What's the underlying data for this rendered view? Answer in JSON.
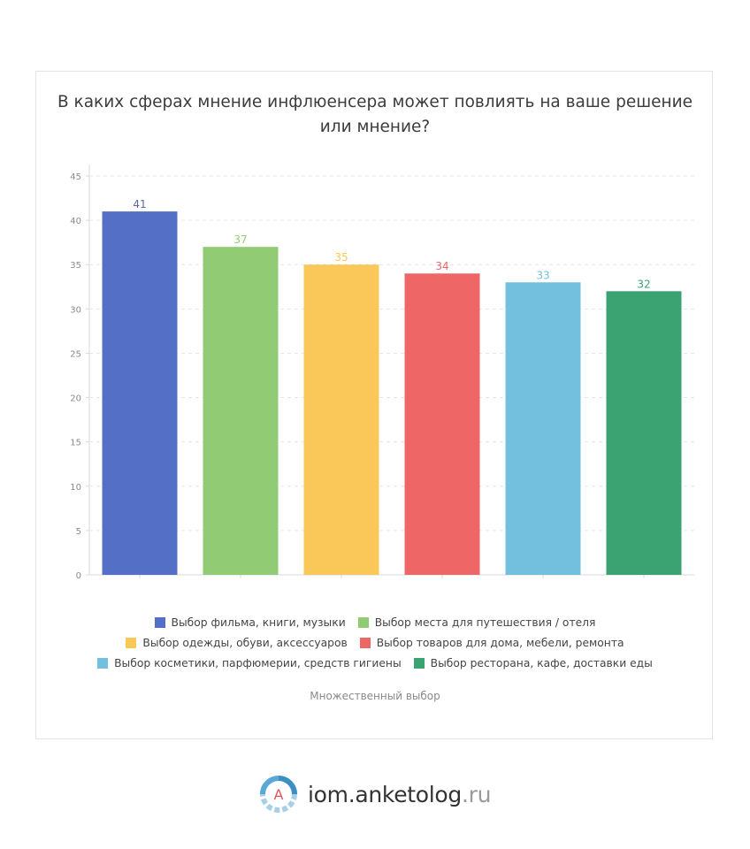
{
  "title_lines": [
    "В каких сферах мнение инфлюенсера может повлиять на ваше решение",
    "или мнение?"
  ],
  "chart_data": {
    "type": "bar",
    "title": "В каких сферах мнение инфлюенсера может повлиять на ваше решение или мнение?",
    "categories": [
      "Выбор фильма, книги, музыки",
      "Выбор места для путешествия / отеля",
      "Выбор одежды, обуви, аксессуаров",
      "Выбор товаров для дома, мебели, ремонта",
      "Выбор косметики, парфюмерии, средств гигиены",
      "Выбор ресторана, кафе, доставки еды"
    ],
    "values": [
      41,
      37,
      35,
      34,
      33,
      32
    ],
    "colors": [
      "#5470c6",
      "#91cb74",
      "#fac858",
      "#ee6666",
      "#73c0de",
      "#3ba272"
    ],
    "ylim": [
      0,
      45
    ],
    "yticks": [
      0,
      5,
      10,
      15,
      20,
      25,
      30,
      35,
      40,
      45
    ],
    "grid": true,
    "legend_position": "bottom"
  },
  "legend_rows": [
    [
      0,
      1
    ],
    [
      2,
      3
    ],
    [
      4,
      5
    ]
  ],
  "footnote": "Множественный выбор",
  "brand": {
    "logo_letter": "A",
    "name": "iom.anketolog",
    "tld": ".ru"
  }
}
